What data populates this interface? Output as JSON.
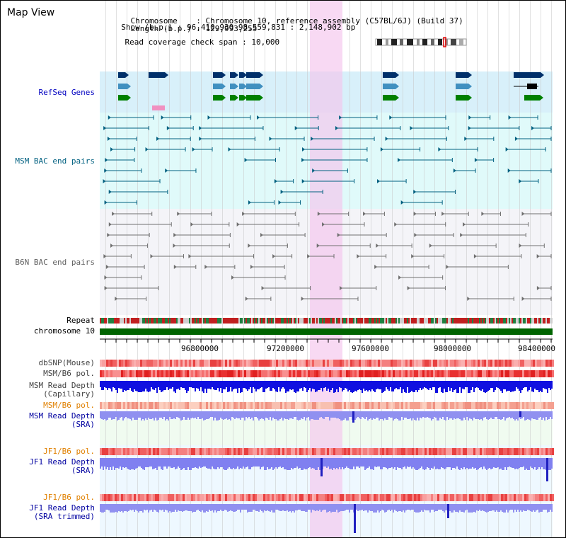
{
  "page": {
    "title": "Map View",
    "info": {
      "chromosome_key": "Chromosome",
      "chromosome_val": "Chromosome 10, reference assembly (C57BL/6J) (Build 37)",
      "length_key": "Length (b.p.)",
      "length_val": "129,993,255",
      "show_key": "Show (b.p.)",
      "show_val": "96,410,930-98,559,831 : 2,148,902 bp",
      "span_key": "Read coverage check span",
      "span_val": "10,000"
    }
  },
  "tracks": {
    "refseq": {
      "label": "RefSeq Genes",
      "color": "#0000c0"
    },
    "msm_bac": {
      "label": "MSM BAC end pairs",
      "color": "#006080"
    },
    "b6n_bac": {
      "label": "B6N BAC end pairs",
      "color": "#606060"
    },
    "repeat": {
      "label": "Repeat"
    },
    "chromosome": {
      "label": "chromosome 10"
    },
    "dbsnp": {
      "label": "dbSNP(Mouse)",
      "color": "#444444"
    },
    "msm_b6_pol_1": {
      "label": "MSM/B6 pol.",
      "color": "#444444"
    },
    "msm_depth_cap_1": {
      "label": "MSM Read Depth",
      "color": "#444444"
    },
    "msm_depth_cap_2": {
      "label": "(Capillary)",
      "color": "#444444"
    },
    "msm_b6_pol_2": {
      "label": "MSM/B6 pol.",
      "color": "#e08000"
    },
    "msm_depth_sra_1": {
      "label": "MSM Read Depth",
      "color": "#0000a0"
    },
    "msm_depth_sra_2": {
      "label": "(SRA)",
      "color": "#0000a0"
    },
    "jf1_b6_pol_1": {
      "label": "JF1/B6 pol.",
      "color": "#e08000"
    },
    "jf1_depth_sra_1": {
      "label": "JF1 Read Depth",
      "color": "#0000a0"
    },
    "jf1_depth_sra_2": {
      "label": "(SRA)",
      "color": "#0000a0"
    },
    "jf1_b6_pol_2": {
      "label": "JF1/B6 pol.",
      "color": "#e08000"
    },
    "jf1_depth_trim_1": {
      "label": "JF1 Read Depth",
      "color": "#0000a0"
    },
    "jf1_depth_trim_2": {
      "label": "(SRA trimmed)",
      "color": "#0000a0"
    }
  },
  "ruler": {
    "ticks": [
      "96800000",
      "97200000",
      "97600000",
      "98000000",
      "98400000"
    ]
  },
  "colors": {
    "highlight": "#f8d8f0",
    "refseq_bg": "#d8f0fa",
    "msm_bg": "#e0fafa",
    "b6n_bg": "#f4f4f8",
    "chromosome": "#006400",
    "gene_dark": "#00306a",
    "gene_mid": "#4090c0",
    "gene_green": "#008000"
  }
}
